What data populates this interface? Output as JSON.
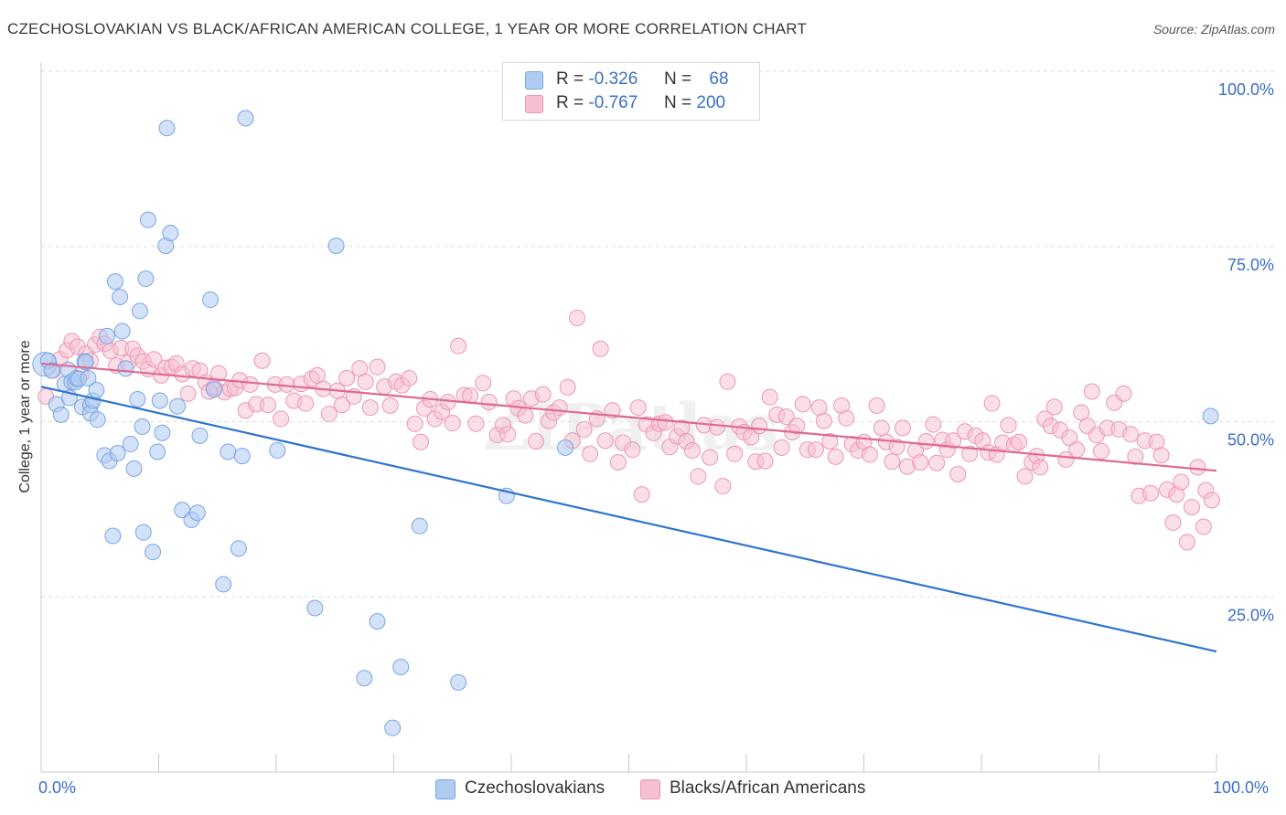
{
  "title": "CZECHOSLOVAKIAN VS BLACK/AFRICAN AMERICAN COLLEGE, 1 YEAR OR MORE CORRELATION CHART",
  "source": "Source: ZipAtlas.com",
  "legend": {
    "rows": [
      {
        "r_label": "R =",
        "r_value": "-0.326",
        "n_label": "N =",
        "n_value": "68"
      },
      {
        "r_label": "R =",
        "r_value": "-0.767",
        "n_label": "N =",
        "n_value": "200"
      }
    ]
  },
  "bottom_legend": [
    "Czechoslovakians",
    "Blacks/African Americans"
  ],
  "x_axis_labels": {
    "left": "0.0%",
    "right": "100.0%"
  },
  "colors": {
    "blue_fill": "#aecbf2",
    "blue_stroke": "#7aa6e0",
    "blue_line": "#2f74d0",
    "pink_fill": "#f7c0d2",
    "pink_stroke": "#ec95b4",
    "pink_line": "#e0698f",
    "grid": "#dcdcdc",
    "tick_label": "#3b6fc7"
  },
  "chart_data": {
    "type": "scatter",
    "xlabel": "",
    "ylabel": "College, 1 year or more",
    "xlim": [
      0,
      100
    ],
    "ylim": [
      0,
      100
    ],
    "y_ticks": [
      "100.0%",
      "75.0%",
      "50.0%",
      "25.0%"
    ],
    "grid": true,
    "watermark": "ZIPatlas",
    "series": [
      {
        "name": "Czechoslovakians",
        "points": [
          [
            0.3,
            58.2
          ],
          [
            0.6,
            58.7
          ],
          [
            0.9,
            57.3
          ],
          [
            1.3,
            52.5
          ],
          [
            1.7,
            51.0
          ],
          [
            2.0,
            55.4
          ],
          [
            2.3,
            57.4
          ],
          [
            2.4,
            53.4
          ],
          [
            2.6,
            55.7
          ],
          [
            2.9,
            55.6
          ],
          [
            3.0,
            56.2
          ],
          [
            3.2,
            56.1
          ],
          [
            3.5,
            52.1
          ],
          [
            3.7,
            58.6
          ],
          [
            3.8,
            58.5
          ],
          [
            4.0,
            56.2
          ],
          [
            4.2,
            52.4
          ],
          [
            4.2,
            51.2
          ],
          [
            4.4,
            53.0
          ],
          [
            4.7,
            54.5
          ],
          [
            4.8,
            50.3
          ],
          [
            5.4,
            45.2
          ],
          [
            5.6,
            62.2
          ],
          [
            5.8,
            44.4
          ],
          [
            6.1,
            33.7
          ],
          [
            6.3,
            70.0
          ],
          [
            6.5,
            45.5
          ],
          [
            6.7,
            67.8
          ],
          [
            6.9,
            62.9
          ],
          [
            7.2,
            57.6
          ],
          [
            7.6,
            46.8
          ],
          [
            7.9,
            43.3
          ],
          [
            8.2,
            53.2
          ],
          [
            8.4,
            65.8
          ],
          [
            8.6,
            49.3
          ],
          [
            8.7,
            34.2
          ],
          [
            8.9,
            70.4
          ],
          [
            9.1,
            78.8
          ],
          [
            9.5,
            31.4
          ],
          [
            9.9,
            45.7
          ],
          [
            10.1,
            53.0
          ],
          [
            10.3,
            48.4
          ],
          [
            10.6,
            75.1
          ],
          [
            10.7,
            91.9
          ],
          [
            11.0,
            76.9
          ],
          [
            11.6,
            52.2
          ],
          [
            12.0,
            37.4
          ],
          [
            12.8,
            36.0
          ],
          [
            13.3,
            37.0
          ],
          [
            13.5,
            48.0
          ],
          [
            14.4,
            67.4
          ],
          [
            14.7,
            54.6
          ],
          [
            15.5,
            26.8
          ],
          [
            15.9,
            45.7
          ],
          [
            16.8,
            31.9
          ],
          [
            17.1,
            45.1
          ],
          [
            17.4,
            93.3
          ],
          [
            20.1,
            45.9
          ],
          [
            23.3,
            23.4
          ],
          [
            25.1,
            75.1
          ],
          [
            27.5,
            13.4
          ],
          [
            28.6,
            21.5
          ],
          [
            29.9,
            6.3
          ],
          [
            30.6,
            15.0
          ],
          [
            32.2,
            35.1
          ],
          [
            35.5,
            12.8
          ],
          [
            39.6,
            39.4
          ],
          [
            44.6,
            46.3
          ],
          [
            99.5,
            50.8
          ]
        ],
        "trend": [
          [
            0,
            55.0
          ],
          [
            100,
            17.2
          ]
        ]
      },
      {
        "name": "Blacks/African Americans",
        "points": [
          [
            0.4,
            53.6
          ],
          [
            1.0,
            57.3
          ],
          [
            1.6,
            58.9
          ],
          [
            2.2,
            60.2
          ],
          [
            2.6,
            61.5
          ],
          [
            3.1,
            60.7
          ],
          [
            3.4,
            56.7
          ],
          [
            3.8,
            59.7
          ],
          [
            4.2,
            58.7
          ],
          [
            4.6,
            61.0
          ],
          [
            5.0,
            62.1
          ],
          [
            5.4,
            61.1
          ],
          [
            5.9,
            60.1
          ],
          [
            6.4,
            58.0
          ],
          [
            6.8,
            60.5
          ],
          [
            7.4,
            58.4
          ],
          [
            7.8,
            60.4
          ],
          [
            8.2,
            59.4
          ],
          [
            8.7,
            58.6
          ],
          [
            9.1,
            57.5
          ],
          [
            9.6,
            58.9
          ],
          [
            10.2,
            56.6
          ],
          [
            10.6,
            57.7
          ],
          [
            11.1,
            57.8
          ],
          [
            11.5,
            58.3
          ],
          [
            12.0,
            56.8
          ],
          [
            12.5,
            54.0
          ],
          [
            12.9,
            57.6
          ],
          [
            13.5,
            57.3
          ],
          [
            14.0,
            55.6
          ],
          [
            14.3,
            54.3
          ],
          [
            14.7,
            54.9
          ],
          [
            15.1,
            56.9
          ],
          [
            15.6,
            54.2
          ],
          [
            16.1,
            54.7
          ],
          [
            16.5,
            54.8
          ],
          [
            16.9,
            55.9
          ],
          [
            17.4,
            51.6
          ],
          [
            17.8,
            55.3
          ],
          [
            18.3,
            52.5
          ],
          [
            18.8,
            58.7
          ],
          [
            19.3,
            52.4
          ],
          [
            19.9,
            55.3
          ],
          [
            20.4,
            50.4
          ],
          [
            20.9,
            55.3
          ],
          [
            21.5,
            53.0
          ],
          [
            22.1,
            55.4
          ],
          [
            22.5,
            52.6
          ],
          [
            23.0,
            56.1
          ],
          [
            23.5,
            56.6
          ],
          [
            24.0,
            54.7
          ],
          [
            24.5,
            51.1
          ],
          [
            25.2,
            54.4
          ],
          [
            25.6,
            52.4
          ],
          [
            26.0,
            56.2
          ],
          [
            26.6,
            53.6
          ],
          [
            27.1,
            57.6
          ],
          [
            27.6,
            55.7
          ],
          [
            28.0,
            52.0
          ],
          [
            28.6,
            57.8
          ],
          [
            29.2,
            55.0
          ],
          [
            29.7,
            52.3
          ],
          [
            30.2,
            55.7
          ],
          [
            30.7,
            55.2
          ],
          [
            31.3,
            56.2
          ],
          [
            31.8,
            49.7
          ],
          [
            32.3,
            47.1
          ],
          [
            32.6,
            51.9
          ],
          [
            33.1,
            53.2
          ],
          [
            33.5,
            50.4
          ],
          [
            34.1,
            51.4
          ],
          [
            34.6,
            52.8
          ],
          [
            35.0,
            49.8
          ],
          [
            35.5,
            60.8
          ],
          [
            36.0,
            53.8
          ],
          [
            36.5,
            53.7
          ],
          [
            37.0,
            49.7
          ],
          [
            37.6,
            55.5
          ],
          [
            38.1,
            52.8
          ],
          [
            38.8,
            48.1
          ],
          [
            39.3,
            49.5
          ],
          [
            39.7,
            48.2
          ],
          [
            40.2,
            53.3
          ],
          [
            40.6,
            51.9
          ],
          [
            41.2,
            50.9
          ],
          [
            41.7,
            53.3
          ],
          [
            42.1,
            47.2
          ],
          [
            42.7,
            53.9
          ],
          [
            43.2,
            50.1
          ],
          [
            43.6,
            51.3
          ],
          [
            44.1,
            52.0
          ],
          [
            44.8,
            54.9
          ],
          [
            45.2,
            47.3
          ],
          [
            45.6,
            64.8
          ],
          [
            46.2,
            48.9
          ],
          [
            46.7,
            45.4
          ],
          [
            47.3,
            50.4
          ],
          [
            47.6,
            60.4
          ],
          [
            48.0,
            47.3
          ],
          [
            48.6,
            51.6
          ],
          [
            49.1,
            44.2
          ],
          [
            49.5,
            47.0
          ],
          [
            50.3,
            46.0
          ],
          [
            50.8,
            52.0
          ],
          [
            51.1,
            39.6
          ],
          [
            51.5,
            49.6
          ],
          [
            52.1,
            48.4
          ],
          [
            52.6,
            49.7
          ],
          [
            53.1,
            49.9
          ],
          [
            53.5,
            46.4
          ],
          [
            54.1,
            47.9
          ],
          [
            54.5,
            49.1
          ],
          [
            54.9,
            47.2
          ],
          [
            55.4,
            45.9
          ],
          [
            55.9,
            42.2
          ],
          [
            56.4,
            49.5
          ],
          [
            56.9,
            44.9
          ],
          [
            57.5,
            49.2
          ],
          [
            58.0,
            40.8
          ],
          [
            58.4,
            55.7
          ],
          [
            59.0,
            45.4
          ],
          [
            59.4,
            49.3
          ],
          [
            59.8,
            48.5
          ],
          [
            60.4,
            47.8
          ],
          [
            60.8,
            44.3
          ],
          [
            61.1,
            49.4
          ],
          [
            61.6,
            44.4
          ],
          [
            62.0,
            53.5
          ],
          [
            62.6,
            51.0
          ],
          [
            63.0,
            46.3
          ],
          [
            63.4,
            50.7
          ],
          [
            63.9,
            48.5
          ],
          [
            64.3,
            49.4
          ],
          [
            64.8,
            52.5
          ],
          [
            65.2,
            46.0
          ],
          [
            65.9,
            46.0
          ],
          [
            66.2,
            52.0
          ],
          [
            66.6,
            50.1
          ],
          [
            67.1,
            47.2
          ],
          [
            67.6,
            45.0
          ],
          [
            68.1,
            52.3
          ],
          [
            68.5,
            50.5
          ],
          [
            69.0,
            46.8
          ],
          [
            69.5,
            45.9
          ],
          [
            70.0,
            47.1
          ],
          [
            70.5,
            45.3
          ],
          [
            71.1,
            52.3
          ],
          [
            71.5,
            49.1
          ],
          [
            71.9,
            47.1
          ],
          [
            72.4,
            44.3
          ],
          [
            72.8,
            46.4
          ],
          [
            73.3,
            49.1
          ],
          [
            73.7,
            43.6
          ],
          [
            74.4,
            45.9
          ],
          [
            74.8,
            44.2
          ],
          [
            75.3,
            47.2
          ],
          [
            75.9,
            49.6
          ],
          [
            76.2,
            44.1
          ],
          [
            76.7,
            47.4
          ],
          [
            77.1,
            46.0
          ],
          [
            77.6,
            47.3
          ],
          [
            78.0,
            42.5
          ],
          [
            78.6,
            48.6
          ],
          [
            79.0,
            45.4
          ],
          [
            79.5,
            48.0
          ],
          [
            80.1,
            47.3
          ],
          [
            80.6,
            45.6
          ],
          [
            80.9,
            52.6
          ],
          [
            81.3,
            45.3
          ],
          [
            81.8,
            47.0
          ],
          [
            82.3,
            49.5
          ],
          [
            82.8,
            46.7
          ],
          [
            83.2,
            47.1
          ],
          [
            83.7,
            42.2
          ],
          [
            84.3,
            44.2
          ],
          [
            84.7,
            45.1
          ],
          [
            85.0,
            43.5
          ],
          [
            85.4,
            50.4
          ],
          [
            85.9,
            49.4
          ],
          [
            86.2,
            52.1
          ],
          [
            86.7,
            48.8
          ],
          [
            87.2,
            44.6
          ],
          [
            87.5,
            47.7
          ],
          [
            88.1,
            46.0
          ],
          [
            88.5,
            51.3
          ],
          [
            89.0,
            49.4
          ],
          [
            89.4,
            54.3
          ],
          [
            89.8,
            48.1
          ],
          [
            90.2,
            45.8
          ],
          [
            90.7,
            49.1
          ],
          [
            91.3,
            52.7
          ],
          [
            91.7,
            48.9
          ],
          [
            92.1,
            54.0
          ],
          [
            92.7,
            48.2
          ],
          [
            93.1,
            45.0
          ],
          [
            93.4,
            39.4
          ],
          [
            93.9,
            47.3
          ],
          [
            94.4,
            39.8
          ],
          [
            94.9,
            47.1
          ],
          [
            95.3,
            45.2
          ],
          [
            95.8,
            40.3
          ],
          [
            96.3,
            35.6
          ],
          [
            96.6,
            39.6
          ],
          [
            97.0,
            41.4
          ],
          [
            97.5,
            32.8
          ],
          [
            97.9,
            37.8
          ],
          [
            98.4,
            43.5
          ],
          [
            98.9,
            35.0
          ],
          [
            99.1,
            40.2
          ],
          [
            99.6,
            38.8
          ]
        ],
        "trend": [
          [
            0,
            58.3
          ],
          [
            100,
            43.0
          ]
        ]
      }
    ]
  }
}
